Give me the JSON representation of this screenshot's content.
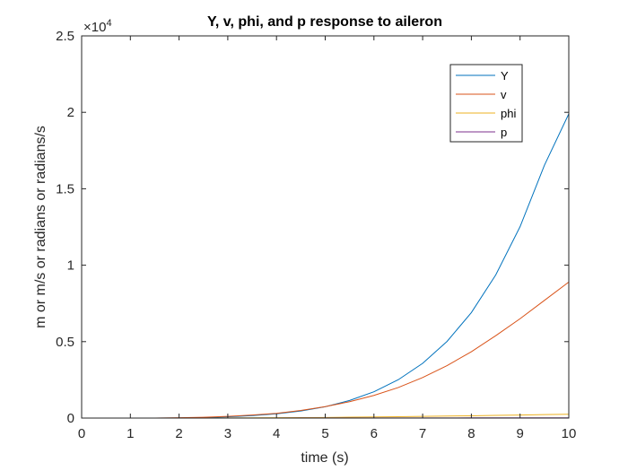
{
  "chart_data": {
    "type": "line",
    "title": "Y, v, phi, and p response to aileron",
    "xlabel": "time (s)",
    "ylabel": "m or m/s or radians or radians/s",
    "y_exponent_base": "×10",
    "y_exponent_power": "4",
    "xlim": [
      0,
      10
    ],
    "ylim": [
      0,
      2.5
    ],
    "x_ticks": [
      0,
      1,
      2,
      3,
      4,
      5,
      6,
      7,
      8,
      9,
      10
    ],
    "x_tick_labels": [
      "0",
      "1",
      "2",
      "3",
      "4",
      "5",
      "6",
      "7",
      "8",
      "9",
      "10"
    ],
    "y_ticks": [
      0,
      0.5,
      1,
      1.5,
      2,
      2.5
    ],
    "y_tick_labels": [
      "0",
      "0.5",
      "1",
      "1.5",
      "2",
      "2.5"
    ],
    "grid": false,
    "legend_position": "top-right",
    "x": [
      0,
      0.5,
      1,
      1.5,
      2,
      2.5,
      3,
      3.5,
      4,
      4.5,
      5,
      5.5,
      6,
      6.5,
      7,
      7.5,
      8,
      8.5,
      9,
      9.5,
      10
    ],
    "series": [
      {
        "name": "Y",
        "color": "#0072BD",
        "values": [
          0,
          0,
          0,
          0,
          0.001,
          0.003,
          0.008,
          0.016,
          0.028,
          0.046,
          0.074,
          0.115,
          0.172,
          0.251,
          0.358,
          0.501,
          0.69,
          0.936,
          1.252,
          1.654,
          1.99
        ]
      },
      {
        "name": "v",
        "color": "#D95319",
        "values": [
          0,
          0,
          0,
          0,
          0.002,
          0.005,
          0.011,
          0.02,
          0.031,
          0.05,
          0.075,
          0.107,
          0.148,
          0.2,
          0.265,
          0.343,
          0.434,
          0.539,
          0.65,
          0.77,
          0.89
        ]
      },
      {
        "name": "phi",
        "color": "#EDB120",
        "values": [
          0,
          0,
          0,
          0,
          0,
          0.0002,
          0.0006,
          0.0012,
          0.002,
          0.003,
          0.004,
          0.0055,
          0.007,
          0.009,
          0.011,
          0.013,
          0.015,
          0.0175,
          0.02,
          0.0225,
          0.025
        ]
      },
      {
        "name": "p",
        "color": "#7E2F8E",
        "values": [
          0,
          0,
          0,
          0,
          0,
          0,
          0.0001,
          0.0002,
          0.0003,
          0.0004,
          0.0005,
          0.0006,
          0.0007,
          0.0008,
          0.0009,
          0.001,
          0.0011,
          0.0012,
          0.0013,
          0.0014,
          0.0015
        ]
      }
    ]
  }
}
